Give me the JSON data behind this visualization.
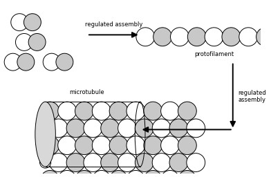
{
  "bg_color": "#ffffff",
  "outline_color": "#000000",
  "white_fill": "#ffffff",
  "dot_fill": "#c8c8c8",
  "arrow1_label": "regulated assembly",
  "arrow2_label": "regulated\nassembly",
  "proto_label": "protofilament",
  "micro_label": "microtubule"
}
